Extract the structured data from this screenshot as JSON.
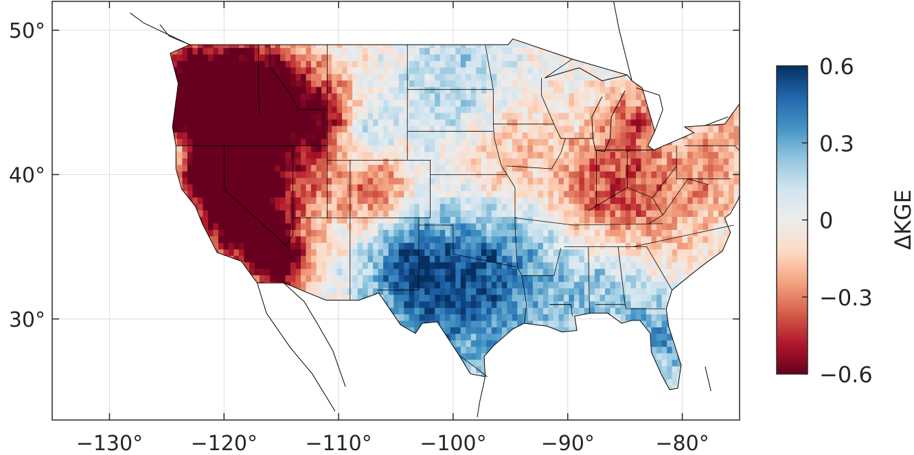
{
  "map": {
    "region": "Contiguous United States",
    "projection": "equirectangular",
    "lon_range": [
      -135,
      -75
    ],
    "lat_range": [
      23,
      52
    ],
    "grid": true,
    "x_ticks": [
      {
        "value": -130,
        "label": "−130°"
      },
      {
        "value": -120,
        "label": "−120°"
      },
      {
        "value": -110,
        "label": "−110°"
      },
      {
        "value": -100,
        "label": "−100°"
      },
      {
        "value": -90,
        "label": "−90°"
      },
      {
        "value": -80,
        "label": "−80°"
      }
    ],
    "y_ticks": [
      {
        "value": 50,
        "label": "50°"
      },
      {
        "value": 40,
        "label": "40°"
      },
      {
        "value": 30,
        "label": "30°"
      }
    ],
    "field_description": "gridded ΔKGE values; red (negative) dominant in western mountains and Midwest/Appalachia, blue (positive) over Texas, Great Plains and Southeast"
  },
  "colorbar": {
    "label": "ΔKGE",
    "min": -0.6,
    "max": 0.6,
    "ticks": [
      {
        "value": 0.6,
        "label": "0.6"
      },
      {
        "value": 0.3,
        "label": "0.3"
      },
      {
        "value": 0,
        "label": "0"
      },
      {
        "value": -0.3,
        "label": "−0.3"
      },
      {
        "value": -0.6,
        "label": "−0.6"
      }
    ],
    "colors": [
      "#67001f",
      "#b2182b",
      "#d6604d",
      "#f4a582",
      "#fddbc7",
      "#ececec",
      "#d1e5f0",
      "#92c5de",
      "#4393c3",
      "#2166ac",
      "#053061"
    ]
  }
}
